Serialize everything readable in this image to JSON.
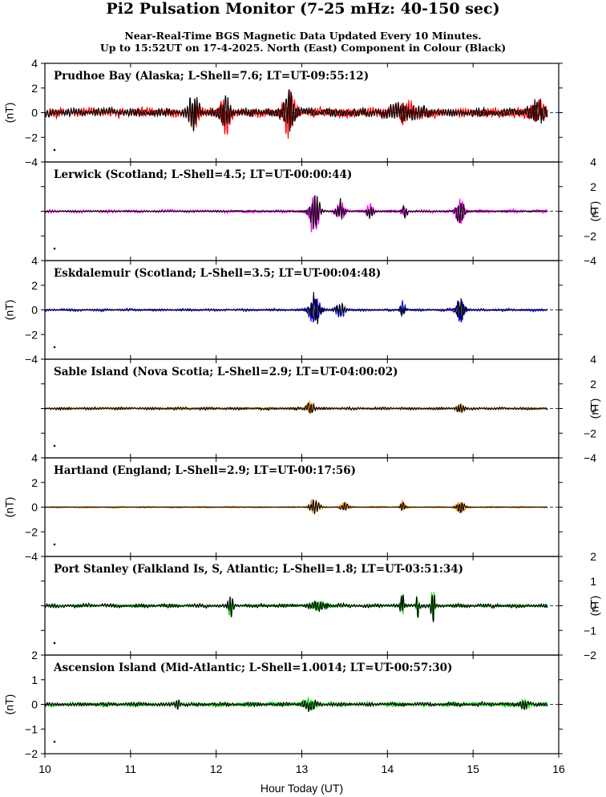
{
  "title": "Pi2 Pulsation Monitor (7-25 mHz: 40-150 sec)",
  "subtitle_line1": "Near-Real-Time BGS Magnetic Data Updated Every 10 Minutes.",
  "subtitle_line2": "Up to 15:52UT on 17-4-2025. North (East) Component in Colour (Black)",
  "chart_data": {
    "type": "line",
    "xlabel": "Hour Today (UT)",
    "xlim": [
      10,
      16
    ],
    "x_ticks": [
      10,
      11,
      12,
      13,
      14,
      15,
      16
    ],
    "data_end_hour": 15.87,
    "panels": [
      {
        "label": "Prudhoe Bay (Alaska; L-Shell=7.6; LT=UT-09:55:12)",
        "ylabel": "(nT)",
        "ylim": [
          -4,
          4
        ],
        "yticks": [
          -4,
          -2,
          0,
          2,
          4
        ],
        "axis_side": "left",
        "colour_component": "North",
        "colour": "#ff0000",
        "black_component": "East",
        "north_base_amp": 0.35,
        "east_base_amp": 0.3,
        "bursts": [
          {
            "t": 11.73,
            "w": 0.06,
            "a": 1.2
          },
          {
            "t": 12.1,
            "w": 0.06,
            "a": 1.1
          },
          {
            "t": 12.85,
            "w": 0.07,
            "a": 1.5
          },
          {
            "t": 14.2,
            "w": 0.2,
            "a": 0.5
          },
          {
            "t": 15.75,
            "w": 0.1,
            "a": 0.6
          }
        ]
      },
      {
        "label": "Lerwick (Scotland; L-Shell=4.5; LT=UT-00:00:44)",
        "ylabel": "(nT)",
        "ylim": [
          -4,
          4
        ],
        "yticks": [
          -4,
          -2,
          0,
          2,
          4
        ],
        "axis_side": "right",
        "colour_component": "North",
        "colour": "#ff00ff",
        "black_component": "East",
        "north_base_amp": 0.12,
        "east_base_amp": 0.05,
        "bursts": [
          {
            "t": 13.15,
            "w": 0.06,
            "a": 1.5
          },
          {
            "t": 13.45,
            "w": 0.05,
            "a": 0.7
          },
          {
            "t": 13.8,
            "w": 0.04,
            "a": 0.5
          },
          {
            "t": 14.2,
            "w": 0.03,
            "a": 0.5
          },
          {
            "t": 14.85,
            "w": 0.05,
            "a": 0.9
          }
        ]
      },
      {
        "label": "Eskdalemuir (Scotland; L-Shell=3.5; LT=UT-00:04:48)",
        "ylabel": "(nT)",
        "ylim": [
          -4,
          4
        ],
        "yticks": [
          -4,
          -2,
          0,
          2,
          4
        ],
        "axis_side": "left",
        "colour_component": "North",
        "colour": "#0000ff",
        "black_component": "East",
        "north_base_amp": 0.1,
        "east_base_amp": 0.03,
        "bursts": [
          {
            "t": 13.15,
            "w": 0.07,
            "a": 1.0
          },
          {
            "t": 13.45,
            "w": 0.06,
            "a": 0.5
          },
          {
            "t": 14.18,
            "w": 0.03,
            "a": 0.6
          },
          {
            "t": 14.85,
            "w": 0.05,
            "a": 0.9
          }
        ]
      },
      {
        "label": "Sable Island (Nova Scotia; L-Shell=2.9; LT=UT-04:00:02)",
        "ylabel": "(nT)",
        "ylim": [
          -4,
          4
        ],
        "yticks": [
          -4,
          -2,
          0,
          2,
          4
        ],
        "axis_side": "right",
        "colour_component": "North",
        "colour": "#ff8c00",
        "black_component": "East",
        "north_base_amp": 0.08,
        "east_base_amp": 0.1,
        "bursts": [
          {
            "t": 13.1,
            "w": 0.05,
            "a": 0.4
          },
          {
            "t": 14.85,
            "w": 0.05,
            "a": 0.25
          }
        ]
      },
      {
        "label": "Hartland (England; L-Shell=2.9; LT=UT-00:17:56)",
        "ylabel": "(nT)",
        "ylim": [
          -4,
          4
        ],
        "yticks": [
          -4,
          -2,
          0,
          2,
          4
        ],
        "axis_side": "left",
        "colour_component": "North",
        "colour": "#ff8c00",
        "black_component": "East",
        "north_base_amp": 0.07,
        "east_base_amp": 0.02,
        "bursts": [
          {
            "t": 13.15,
            "w": 0.06,
            "a": 0.55
          },
          {
            "t": 13.5,
            "w": 0.05,
            "a": 0.3
          },
          {
            "t": 14.18,
            "w": 0.03,
            "a": 0.4
          },
          {
            "t": 14.85,
            "w": 0.05,
            "a": 0.5
          }
        ]
      },
      {
        "label": "Port Stanley (Falkland Is, S, Atlantic; L-Shell=1.8; LT=UT-03:51:34)",
        "ylabel": "(nT)",
        "ylim": [
          -2,
          2
        ],
        "yticks": [
          -2,
          -1,
          0,
          1,
          2
        ],
        "axis_side": "right",
        "colour_component": "North",
        "colour": "#00dd00",
        "black_component": "East",
        "north_base_amp": 0.05,
        "east_base_amp": 0.07,
        "bursts": [
          {
            "t": 12.17,
            "w": 0.03,
            "a": 0.4
          },
          {
            "t": 13.2,
            "w": 0.1,
            "a": 0.15
          },
          {
            "t": 14.17,
            "w": 0.02,
            "a": 0.5
          },
          {
            "t": 14.35,
            "w": 0.02,
            "a": 0.45
          },
          {
            "t": 14.53,
            "w": 0.02,
            "a": 0.8
          }
        ]
      },
      {
        "label": "Ascension Island (Mid-Atlantic; L-Shell=1.0014; LT=UT-00:57:30)",
        "ylabel": "(nT)",
        "ylim": [
          -2,
          2
        ],
        "yticks": [
          -2,
          -1,
          0,
          1,
          2
        ],
        "axis_side": "left",
        "colour_component": "North",
        "colour": "#00dd00",
        "black_component": "East",
        "north_base_amp": 0.08,
        "east_base_amp": 0.07,
        "bursts": [
          {
            "t": 11.55,
            "w": 0.03,
            "a": 0.2
          },
          {
            "t": 13.1,
            "w": 0.08,
            "a": 0.15
          },
          {
            "t": 15.6,
            "w": 0.05,
            "a": 0.15
          }
        ]
      }
    ]
  }
}
